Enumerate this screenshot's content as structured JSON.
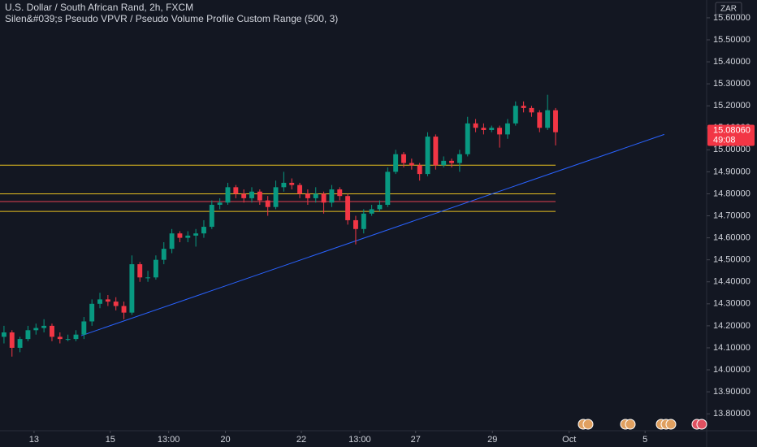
{
  "chart_data": {
    "type": "candlestick",
    "title": "U.S. Dollar / South African Rand, 2h, FXCM",
    "subtitle": "Silen&#039;s Pseudo VPVR / Pseudo Volume Profile Custom Range (500, 3)",
    "currency": "ZAR",
    "up_color": "#089981",
    "down_color": "#f23645",
    "grid": false,
    "open": [
      14.15,
      14.17,
      14.1,
      14.14,
      14.18,
      14.19,
      14.2,
      14.15,
      14.14,
      14.14,
      14.16,
      14.22,
      14.3,
      14.32,
      14.31,
      14.29,
      14.26,
      14.48,
      14.42,
      14.42,
      14.5,
      14.55,
      14.62,
      14.6,
      14.61,
      14.62,
      14.65,
      14.75,
      14.76,
      14.83,
      14.8,
      14.78,
      14.81,
      14.77,
      14.74,
      14.83,
      14.85,
      14.84,
      14.8,
      14.78,
      14.8,
      14.76,
      14.82,
      14.79,
      14.68,
      14.64,
      14.71,
      14.73,
      14.75,
      14.9,
      14.98,
      14.94,
      14.93,
      14.89,
      15.06,
      14.93,
      14.95,
      14.94,
      14.98,
      15.12,
      15.1,
      15.09,
      15.1,
      15.07,
      15.12,
      15.2,
      15.19,
      15.17,
      15.1,
      15.18
    ],
    "high": [
      14.2,
      14.18,
      14.15,
      14.2,
      14.21,
      14.23,
      14.21,
      14.17,
      14.16,
      14.18,
      14.24,
      14.32,
      14.35,
      14.34,
      14.33,
      14.31,
      14.52,
      14.49,
      14.45,
      14.52,
      14.58,
      14.64,
      14.63,
      14.63,
      14.64,
      14.68,
      14.77,
      14.78,
      14.85,
      14.84,
      14.82,
      14.83,
      14.82,
      14.79,
      14.86,
      14.9,
      14.87,
      14.85,
      14.82,
      14.83,
      14.81,
      14.84,
      14.83,
      14.8,
      14.7,
      14.73,
      14.75,
      14.77,
      14.92,
      15.0,
      14.99,
      14.96,
      14.94,
      15.08,
      15.07,
      14.97,
      14.96,
      15.0,
      15.15,
      15.14,
      15.12,
      15.11,
      15.11,
      15.14,
      15.22,
      15.22,
      15.2,
      15.18,
      15.25,
      15.19
    ],
    "low": [
      14.12,
      14.06,
      14.08,
      14.13,
      14.16,
      14.17,
      14.13,
      14.12,
      14.13,
      14.13,
      14.14,
      14.2,
      14.28,
      14.29,
      14.27,
      14.23,
      14.25,
      14.4,
      14.4,
      14.41,
      14.48,
      14.53,
      14.58,
      14.58,
      14.56,
      14.6,
      14.64,
      14.73,
      14.75,
      14.78,
      14.76,
      14.76,
      14.75,
      14.7,
      14.73,
      14.81,
      14.82,
      14.78,
      14.75,
      14.76,
      14.71,
      14.74,
      14.77,
      14.66,
      14.57,
      14.62,
      14.7,
      14.72,
      14.74,
      14.89,
      14.92,
      14.91,
      14.86,
      14.88,
      14.91,
      14.92,
      14.92,
      14.9,
      14.97,
      15.08,
      15.07,
      15.08,
      15.01,
      15.05,
      15.11,
      15.17,
      15.15,
      15.08,
      15.09,
      15.02
    ],
    "close": [
      14.17,
      14.1,
      14.14,
      14.18,
      14.19,
      14.2,
      14.15,
      14.14,
      14.14,
      14.16,
      14.22,
      14.3,
      14.32,
      14.31,
      14.29,
      14.26,
      14.48,
      14.42,
      14.42,
      14.5,
      14.55,
      14.62,
      14.6,
      14.61,
      14.62,
      14.65,
      14.75,
      14.76,
      14.83,
      14.8,
      14.78,
      14.81,
      14.77,
      14.74,
      14.83,
      14.85,
      14.84,
      14.8,
      14.78,
      14.8,
      14.76,
      14.82,
      14.79,
      14.68,
      14.64,
      14.71,
      14.73,
      14.75,
      14.9,
      14.98,
      14.94,
      14.93,
      14.89,
      15.06,
      14.93,
      14.95,
      14.94,
      14.98,
      15.12,
      15.1,
      15.09,
      15.1,
      15.07,
      15.12,
      15.2,
      15.19,
      15.17,
      15.1,
      15.18,
      15.08
    ],
    "levels": [
      {
        "value": 14.93,
        "color": "#e8c020"
      },
      {
        "value": 14.8,
        "color": "#e8c020"
      },
      {
        "value": 14.765,
        "color": "#e04050"
      },
      {
        "value": 14.72,
        "color": "#e8c020"
      }
    ],
    "trendline": {
      "x": [
        9.65,
        82.6
      ],
      "y": [
        14.155,
        15.07
      ],
      "color": "#2962ff"
    },
    "current_price": {
      "value": 15.0806,
      "label": "15.08060",
      "countdown": "49:08"
    },
    "xlim": [
      -0.5,
      87.9
    ],
    "ylim": [
      13.723,
      15.681
    ],
    "xticks": [
      {
        "value": 3.76,
        "label": "13"
      },
      {
        "value": 13.3,
        "label": "15"
      },
      {
        "value": 20.6,
        "label": "13:00"
      },
      {
        "value": 27.7,
        "label": "20"
      },
      {
        "value": 37.2,
        "label": "22"
      },
      {
        "value": 44.5,
        "label": "13:00"
      },
      {
        "value": 51.5,
        "label": "27"
      },
      {
        "value": 61.1,
        "label": "29"
      },
      {
        "value": 70.7,
        "label": "Oct"
      },
      {
        "value": 80.2,
        "label": "5"
      }
    ],
    "yticks": [
      {
        "value": 13.8,
        "label": "13.80000"
      },
      {
        "value": 13.9,
        "label": "13.90000"
      },
      {
        "value": 14.0,
        "label": "14.00000"
      },
      {
        "value": 14.1,
        "label": "14.10000"
      },
      {
        "value": 14.2,
        "label": "14.20000"
      },
      {
        "value": 14.3,
        "label": "14.30000"
      },
      {
        "value": 14.4,
        "label": "14.40000"
      },
      {
        "value": 14.5,
        "label": "14.50000"
      },
      {
        "value": 14.6,
        "label": "14.60000"
      },
      {
        "value": 14.7,
        "label": "14.70000"
      },
      {
        "value": 14.8,
        "label": "14.80000"
      },
      {
        "value": 14.9,
        "label": "14.90000"
      },
      {
        "value": 15.0,
        "label": "15.00000"
      },
      {
        "value": 15.1,
        "label": "15.10000"
      },
      {
        "value": 15.2,
        "label": "15.20000"
      },
      {
        "value": 15.3,
        "label": "15.30000"
      },
      {
        "value": 15.4,
        "label": "15.40000"
      },
      {
        "value": 15.5,
        "label": "15.50000"
      },
      {
        "value": 15.6,
        "label": "15.60000"
      }
    ]
  }
}
